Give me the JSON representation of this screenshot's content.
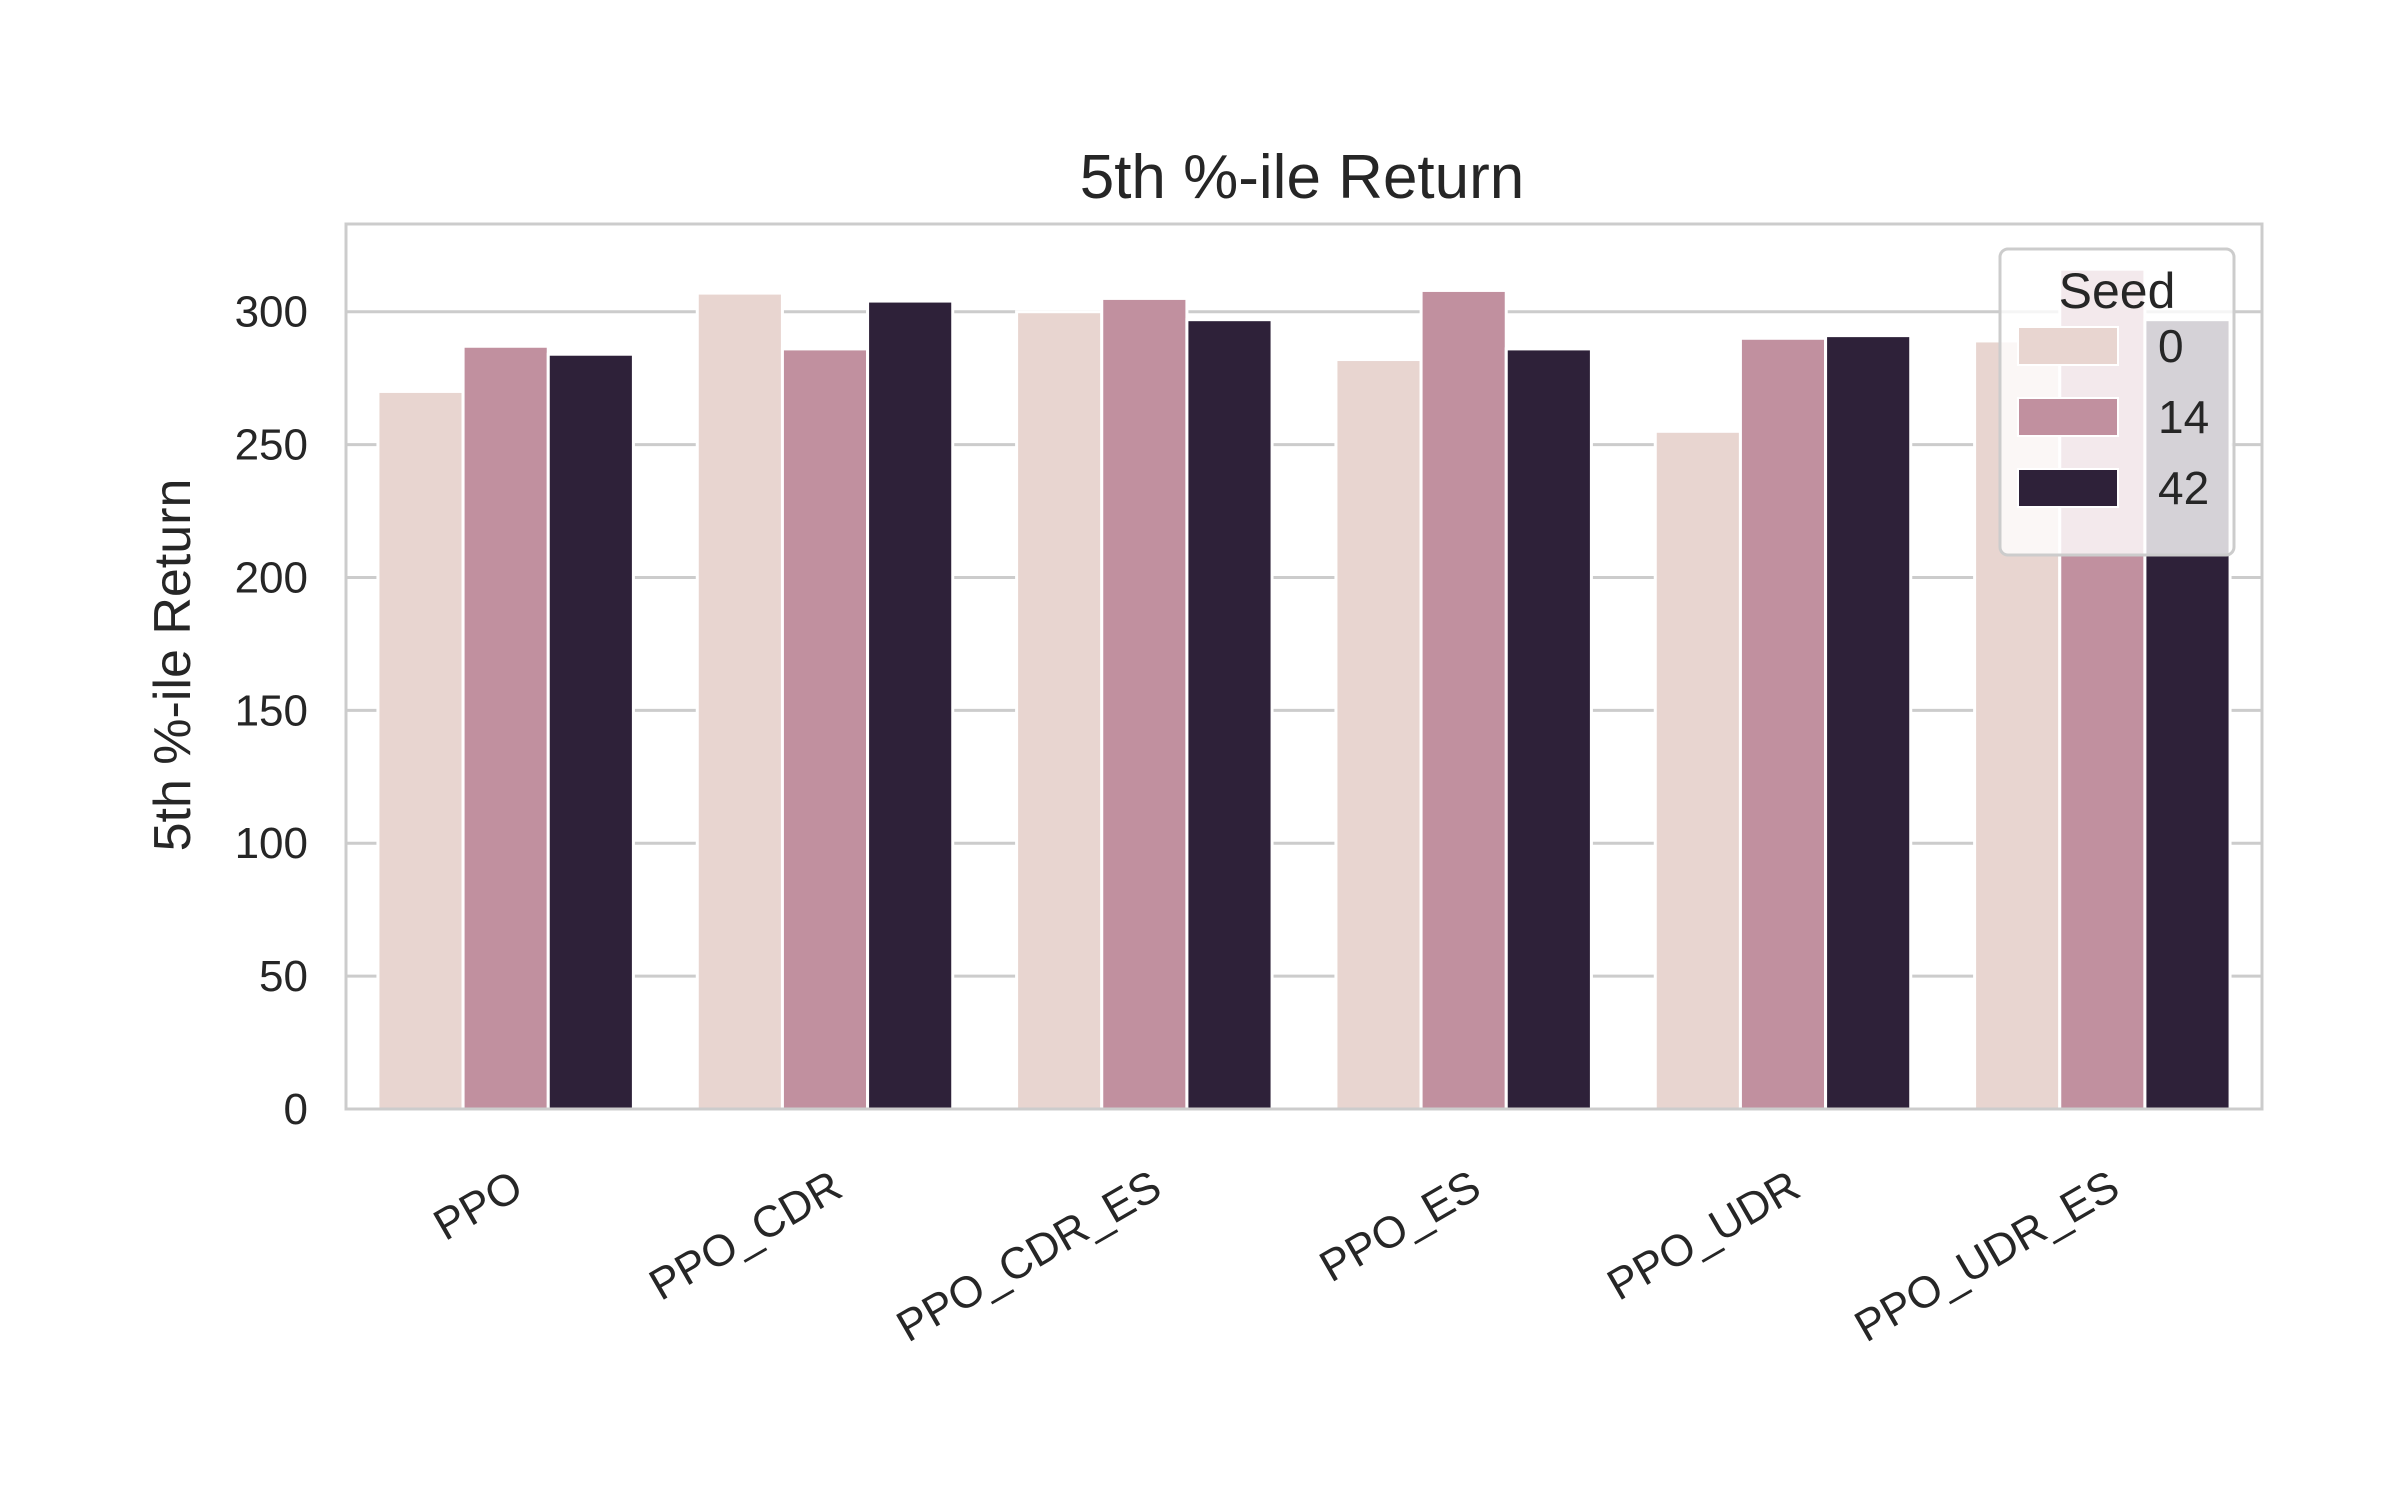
{
  "chart_data": {
    "type": "bar",
    "title": "5th %-ile Return",
    "xlabel": "",
    "ylabel": "5th %-ile Return",
    "categories": [
      "PPO",
      "PPO_CDR",
      "PPO_CDR_ES",
      "PPO_ES",
      "PPO_UDR",
      "PPO_UDR_ES"
    ],
    "series": [
      {
        "name": "0",
        "color": "#e8d5d0",
        "values": [
          270,
          307,
          300,
          282,
          255,
          289
        ]
      },
      {
        "name": "14",
        "color": "#c1909f",
        "values": [
          287,
          286,
          305,
          308,
          290,
          316
        ]
      },
      {
        "name": "42",
        "color": "#2e2139",
        "values": [
          284,
          304,
          297,
          286,
          291,
          297
        ]
      }
    ],
    "ylim": [
      0,
      333
    ],
    "yticks": [
      "0",
      "50",
      "100",
      "150",
      "200",
      "250",
      "300"
    ],
    "grid": "horizontal",
    "legend": {
      "title": "Seed",
      "placement": "top-right"
    },
    "colors": {
      "grid": "#cccccc",
      "frame": "#cccccc",
      "text": "#262626"
    }
  }
}
